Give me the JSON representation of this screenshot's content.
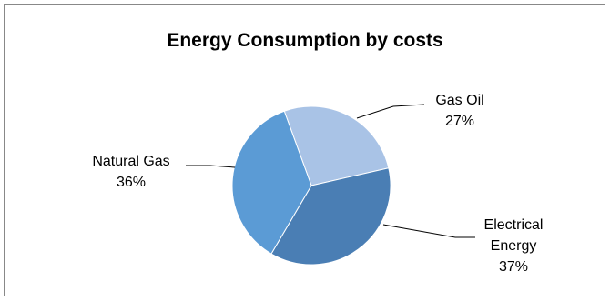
{
  "chart_data": {
    "type": "pie",
    "title": "Energy Consumption by costs",
    "slices": [
      {
        "label": "Gas Oil",
        "label_lines": [
          "Gas Oil"
        ],
        "value": 27,
        "pct_label": "27%",
        "color": "#a9c3e6"
      },
      {
        "label": "Electrical Energy",
        "label_lines": [
          "Electrical",
          "Energy"
        ],
        "value": 37,
        "pct_label": "37%",
        "color": "#4a7eb4"
      },
      {
        "label": "Natural Gas",
        "label_lines": [
          "Natural Gas"
        ],
        "value": 36,
        "pct_label": "36%",
        "color": "#5b9bd5"
      }
    ],
    "legend": "none",
    "data_labels": "outside with leader lines"
  }
}
